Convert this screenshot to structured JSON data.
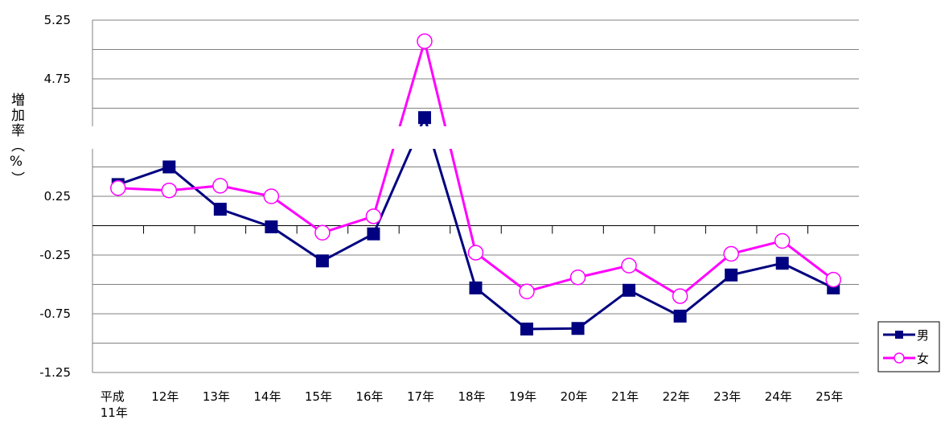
{
  "chart_data": {
    "type": "line",
    "y_label": "増加率（%）",
    "categories": [
      "平成\n11年",
      "12年",
      "13年",
      "14年",
      "15年",
      "16年",
      "17年",
      "18年",
      "19年",
      "20年",
      "21年",
      "22年",
      "23年",
      "24年",
      "25年"
    ],
    "series": [
      {
        "name": "男",
        "color": "#000080",
        "marker": "square",
        "values": [
          0.35,
          0.5,
          0.14,
          -0.01,
          -0.3,
          -0.07,
          4.42,
          -0.53,
          -0.88,
          -0.875,
          -0.55,
          -0.77,
          -0.42,
          -0.32,
          -0.53
        ]
      },
      {
        "name": "女",
        "color": "#ff00ff",
        "marker": "circle",
        "values": [
          0.32,
          0.3,
          0.34,
          0.25,
          -0.06,
          0.08,
          5.07,
          -0.23,
          -0.56,
          -0.44,
          -0.34,
          -0.6,
          -0.24,
          -0.13,
          -0.46
        ]
      }
    ],
    "ylim": [
      -1.25,
      5.25
    ],
    "y_break": [
      0.75,
      4.25
    ],
    "yticks": [
      5.25,
      4.75,
      0.25,
      -0.25,
      -0.75,
      -1.25
    ],
    "minor_grid": [
      5.0,
      4.5,
      0.5,
      -0.5,
      -1.0
    ],
    "grid": true,
    "legend": "bottom-right"
  }
}
